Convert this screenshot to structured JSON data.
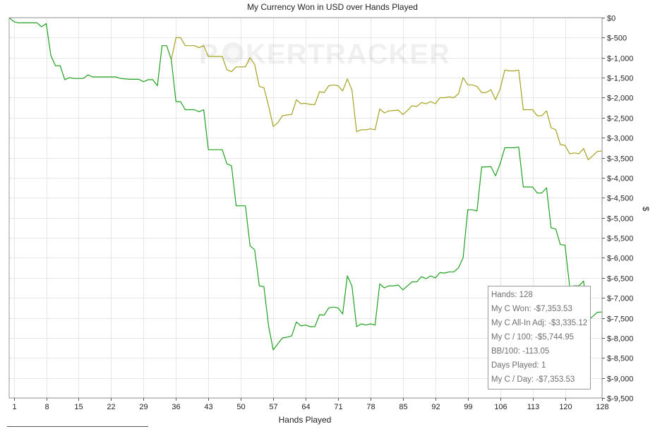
{
  "chart_data": {
    "type": "line",
    "title": "My Currency Won in USD over Hands Played",
    "xlabel": "Hands Played",
    "ylabel": "$",
    "xlim": [
      0,
      128
    ],
    "ylim": [
      -9500,
      0
    ],
    "x_ticks": [
      1,
      8,
      15,
      22,
      29,
      36,
      43,
      50,
      57,
      64,
      71,
      78,
      85,
      92,
      99,
      106,
      113,
      120,
      128
    ],
    "y_ticks": [
      0,
      -500,
      -1000,
      -1500,
      -2000,
      -2500,
      -3000,
      -3500,
      -4000,
      -4500,
      -5000,
      -5500,
      -6000,
      -6500,
      -7000,
      -7500,
      -8000,
      -8500,
      -9000,
      -9500
    ],
    "y_tick_labels": [
      "$0",
      "$-500",
      "$-1,000",
      "$-1,500",
      "$-2,000",
      "$-2,500",
      "$-3,000",
      "$-3,500",
      "$-4,000",
      "$-4,500",
      "$-5,000",
      "$-5,500",
      "$-6,000",
      "$-6,500",
      "$-7,000",
      "$-7,500",
      "$-8,000",
      "$-8,500",
      "$-9,000",
      "$-9,500"
    ],
    "grid": true,
    "series": [
      {
        "color": "#1fa11f",
        "points": [
          [
            0,
            0
          ],
          [
            1,
            -100
          ],
          [
            2,
            -130
          ],
          [
            4,
            -130
          ],
          [
            6,
            -130
          ],
          [
            7,
            -230
          ],
          [
            8,
            -150
          ],
          [
            9,
            -950
          ],
          [
            10,
            -1200
          ],
          [
            11,
            -1200
          ],
          [
            12,
            -1550
          ],
          [
            13,
            -1500
          ],
          [
            14,
            -1520
          ],
          [
            16,
            -1520
          ],
          [
            17,
            -1430
          ],
          [
            18,
            -1480
          ],
          [
            20,
            -1480
          ],
          [
            22,
            -1480
          ],
          [
            23,
            -1480
          ],
          [
            24,
            -1520
          ],
          [
            26,
            -1540
          ],
          [
            28,
            -1540
          ],
          [
            29,
            -1600
          ],
          [
            30,
            -1550
          ],
          [
            31,
            -1550
          ],
          [
            32,
            -1700
          ],
          [
            33,
            -700
          ],
          [
            34,
            -700
          ],
          [
            35,
            -1050
          ],
          [
            36,
            -2100
          ],
          [
            37,
            -2100
          ],
          [
            38,
            -2300
          ],
          [
            40,
            -2300
          ],
          [
            41,
            -2350
          ],
          [
            42,
            -2300
          ],
          [
            43,
            -3300
          ],
          [
            46,
            -3300
          ],
          [
            47,
            -3650
          ],
          [
            48,
            -3700
          ],
          [
            49,
            -4700
          ],
          [
            51,
            -4700
          ],
          [
            52,
            -5700
          ],
          [
            53,
            -5800
          ],
          [
            54,
            -6700
          ],
          [
            55,
            -6720
          ],
          [
            56,
            -7700
          ],
          [
            57,
            -8300
          ],
          [
            58,
            -8150
          ],
          [
            59,
            -8000
          ],
          [
            60,
            -7980
          ],
          [
            61,
            -7950
          ],
          [
            62,
            -7600
          ],
          [
            63,
            -7700
          ],
          [
            64,
            -7680
          ],
          [
            65,
            -7720
          ],
          [
            66,
            -7720
          ],
          [
            67,
            -7420
          ],
          [
            68,
            -7430
          ],
          [
            69,
            -7250
          ],
          [
            70,
            -7230
          ],
          [
            71,
            -7250
          ],
          [
            72,
            -7400
          ],
          [
            73,
            -6450
          ],
          [
            74,
            -6700
          ],
          [
            75,
            -7720
          ],
          [
            76,
            -7650
          ],
          [
            77,
            -7680
          ],
          [
            78,
            -7650
          ],
          [
            79,
            -7680
          ],
          [
            80,
            -6650
          ],
          [
            81,
            -6750
          ],
          [
            82,
            -6700
          ],
          [
            83,
            -6700
          ],
          [
            84,
            -6680
          ],
          [
            85,
            -6800
          ],
          [
            86,
            -6700
          ],
          [
            87,
            -6600
          ],
          [
            88,
            -6600
          ],
          [
            89,
            -6470
          ],
          [
            90,
            -6520
          ],
          [
            91,
            -6450
          ],
          [
            92,
            -6500
          ],
          [
            93,
            -6370
          ],
          [
            94,
            -6380
          ],
          [
            95,
            -6350
          ],
          [
            96,
            -6350
          ],
          [
            97,
            -6250
          ],
          [
            98,
            -6000
          ],
          [
            99,
            -4800
          ],
          [
            100,
            -4800
          ],
          [
            101,
            -4830
          ],
          [
            102,
            -3730
          ],
          [
            103,
            -3730
          ],
          [
            104,
            -3720
          ],
          [
            105,
            -3950
          ],
          [
            106,
            -3650
          ],
          [
            107,
            -3250
          ],
          [
            108,
            -3250
          ],
          [
            109,
            -3250
          ],
          [
            110,
            -3230
          ],
          [
            111,
            -4230
          ],
          [
            112,
            -4230
          ],
          [
            113,
            -4230
          ],
          [
            114,
            -4380
          ],
          [
            115,
            -4380
          ],
          [
            116,
            -4250
          ],
          [
            117,
            -5250
          ],
          [
            118,
            -5280
          ],
          [
            119,
            -5670
          ],
          [
            120,
            -5680
          ],
          [
            121,
            -6720
          ],
          [
            122,
            -6700
          ],
          [
            123,
            -6700
          ],
          [
            124,
            -6580
          ],
          [
            125,
            -7560
          ],
          [
            126,
            -7460
          ],
          [
            127,
            -7360
          ],
          [
            128,
            -7353.53
          ]
        ]
      },
      {
        "color": "#a5a21e",
        "points": [
          [
            35,
            -1050
          ],
          [
            36,
            -500
          ],
          [
            37,
            -500
          ],
          [
            38,
            -700
          ],
          [
            40,
            -700
          ],
          [
            41,
            -750
          ],
          [
            42,
            -700
          ],
          [
            43,
            -970
          ],
          [
            46,
            -970
          ],
          [
            47,
            -1300
          ],
          [
            48,
            -1350
          ],
          [
            49,
            -1230
          ],
          [
            51,
            -1230
          ],
          [
            52,
            -1000
          ],
          [
            53,
            -1170
          ],
          [
            54,
            -1720
          ],
          [
            55,
            -1750
          ],
          [
            56,
            -2200
          ],
          [
            57,
            -2720
          ],
          [
            58,
            -2630
          ],
          [
            59,
            -2450
          ],
          [
            60,
            -2430
          ],
          [
            61,
            -2420
          ],
          [
            62,
            -2050
          ],
          [
            63,
            -2150
          ],
          [
            64,
            -2140
          ],
          [
            65,
            -2170
          ],
          [
            66,
            -2170
          ],
          [
            67,
            -1850
          ],
          [
            68,
            -1870
          ],
          [
            69,
            -1700
          ],
          [
            70,
            -1680
          ],
          [
            71,
            -1700
          ],
          [
            72,
            -1830
          ],
          [
            73,
            -1530
          ],
          [
            74,
            -1800
          ],
          [
            75,
            -2850
          ],
          [
            76,
            -2800
          ],
          [
            77,
            -2800
          ],
          [
            78,
            -2780
          ],
          [
            79,
            -2800
          ],
          [
            80,
            -2280
          ],
          [
            81,
            -2380
          ],
          [
            82,
            -2330
          ],
          [
            83,
            -2320
          ],
          [
            84,
            -2310
          ],
          [
            85,
            -2420
          ],
          [
            86,
            -2320
          ],
          [
            87,
            -2200
          ],
          [
            88,
            -2220
          ],
          [
            89,
            -2120
          ],
          [
            90,
            -2150
          ],
          [
            91,
            -2100
          ],
          [
            92,
            -2150
          ],
          [
            93,
            -2000
          ],
          [
            94,
            -2000
          ],
          [
            95,
            -1980
          ],
          [
            96,
            -2000
          ],
          [
            97,
            -1900
          ],
          [
            98,
            -1500
          ],
          [
            99,
            -1680
          ],
          [
            100,
            -1680
          ],
          [
            101,
            -1720
          ],
          [
            102,
            -1870
          ],
          [
            103,
            -1870
          ],
          [
            104,
            -1800
          ],
          [
            105,
            -2050
          ],
          [
            106,
            -1780
          ],
          [
            107,
            -1310
          ],
          [
            108,
            -1330
          ],
          [
            109,
            -1330
          ],
          [
            110,
            -1310
          ],
          [
            111,
            -2300
          ],
          [
            112,
            -2300
          ],
          [
            113,
            -2300
          ],
          [
            114,
            -2450
          ],
          [
            115,
            -2450
          ],
          [
            116,
            -2330
          ],
          [
            117,
            -2750
          ],
          [
            118,
            -2800
          ],
          [
            119,
            -3170
          ],
          [
            120,
            -3190
          ],
          [
            121,
            -3400
          ],
          [
            122,
            -3380
          ],
          [
            123,
            -3400
          ],
          [
            124,
            -3270
          ],
          [
            125,
            -3550
          ],
          [
            126,
            -3450
          ],
          [
            127,
            -3340
          ],
          [
            128,
            -3335.12
          ]
        ]
      }
    ]
  },
  "watermark": {
    "text_left": "P",
    "text_right": "KERTRACKER"
  },
  "stats": [
    "Hands: 128",
    "My C Won: -$7,353.53",
    "My C All-In Adj: -$3,335.12",
    "My C / 100: -$5,744.95",
    "BB/100: -113.05",
    "Days Played: 1",
    "My C / Day: -$7,353.53"
  ]
}
